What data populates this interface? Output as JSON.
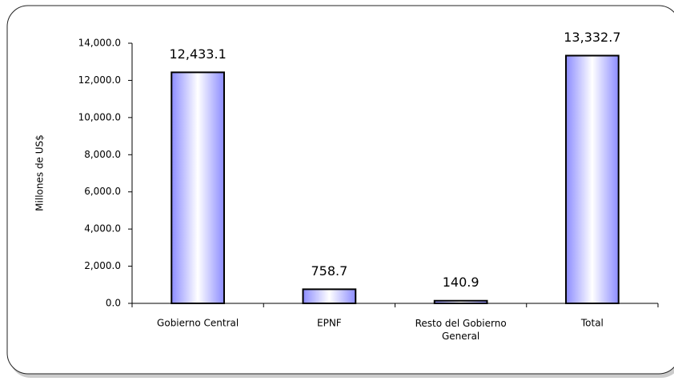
{
  "chart_data": {
    "type": "bar",
    "y_axis_label": "Millones de US$",
    "categories": [
      "Gobierno Central",
      "EPNF",
      "Resto del Gobierno General",
      "Total"
    ],
    "values": [
      12433.1,
      758.7,
      140.9,
      13332.7
    ],
    "value_labels": [
      "12,433.1",
      "758.7",
      "140.9",
      "13,332.7"
    ],
    "color": "#8c8cff",
    "ylim": [
      0,
      14000
    ],
    "yticks": [
      {
        "value": 0,
        "label": "0.0"
      },
      {
        "value": 2000,
        "label": "2,000.0"
      },
      {
        "value": 4000,
        "label": "4,000.0"
      },
      {
        "value": 6000,
        "label": "6,000.0"
      },
      {
        "value": 8000,
        "label": "8,000.0"
      },
      {
        "value": 10000,
        "label": "10,000.0"
      },
      {
        "value": 12000,
        "label": "12,000.0"
      },
      {
        "value": 14000,
        "label": "14,000.0"
      }
    ],
    "grid": false
  }
}
